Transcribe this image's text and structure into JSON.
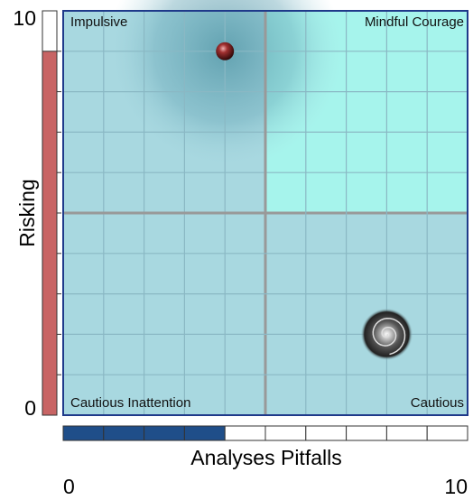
{
  "chart_data": {
    "type": "quadrant",
    "xlabel": "Analyses Pitfalls",
    "ylabel": "Risking",
    "xlim": [
      0,
      10
    ],
    "ylim": [
      0,
      10
    ],
    "xticks": [
      0,
      10
    ],
    "yticks": [
      0,
      10
    ],
    "quadrants": [
      "Impulsive",
      "Mindful Courage",
      "Cautious Inattention",
      "Cautious"
    ],
    "x": [
      4,
      8
    ],
    "values": [
      9,
      2
    ],
    "grid": true
  }
}
